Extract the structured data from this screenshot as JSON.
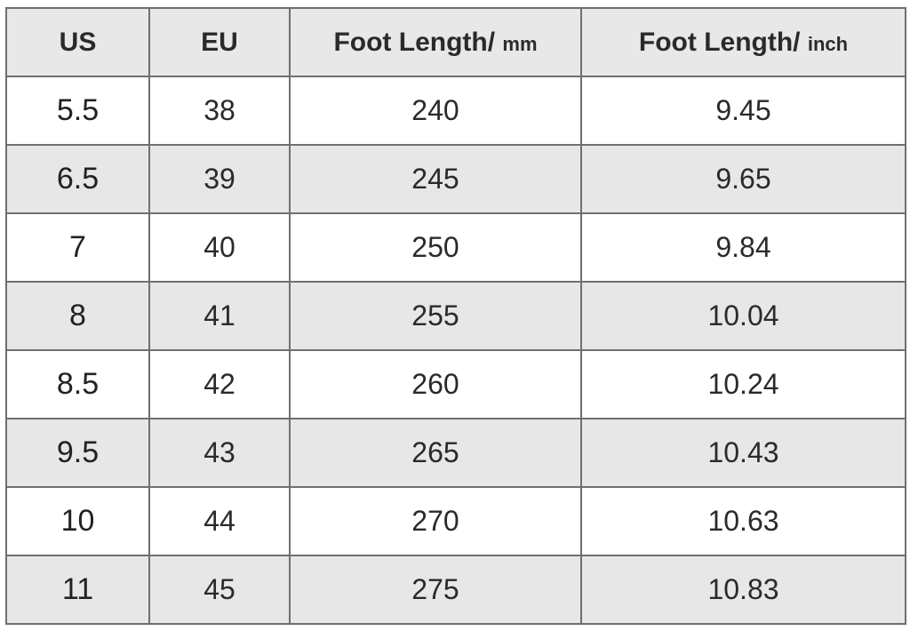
{
  "table": {
    "header": [
      {
        "text": "US"
      },
      {
        "text": "EU"
      },
      {
        "text": "Foot Length/",
        "unit": "mm"
      },
      {
        "text": "Foot Length/",
        "unit": "inch"
      }
    ],
    "rows": [
      [
        "5.5",
        "38",
        "240",
        "9.45"
      ],
      [
        "6.5",
        "39",
        "245",
        "9.65"
      ],
      [
        "7",
        "40",
        "250",
        "9.84"
      ],
      [
        "8",
        "41",
        "255",
        "10.04"
      ],
      [
        "8.5",
        "42",
        "260",
        "10.24"
      ],
      [
        "9.5",
        "43",
        "265",
        "10.43"
      ],
      [
        "10",
        "44",
        "270",
        "10.63"
      ],
      [
        "11",
        "45",
        "275",
        "10.83"
      ]
    ]
  }
}
